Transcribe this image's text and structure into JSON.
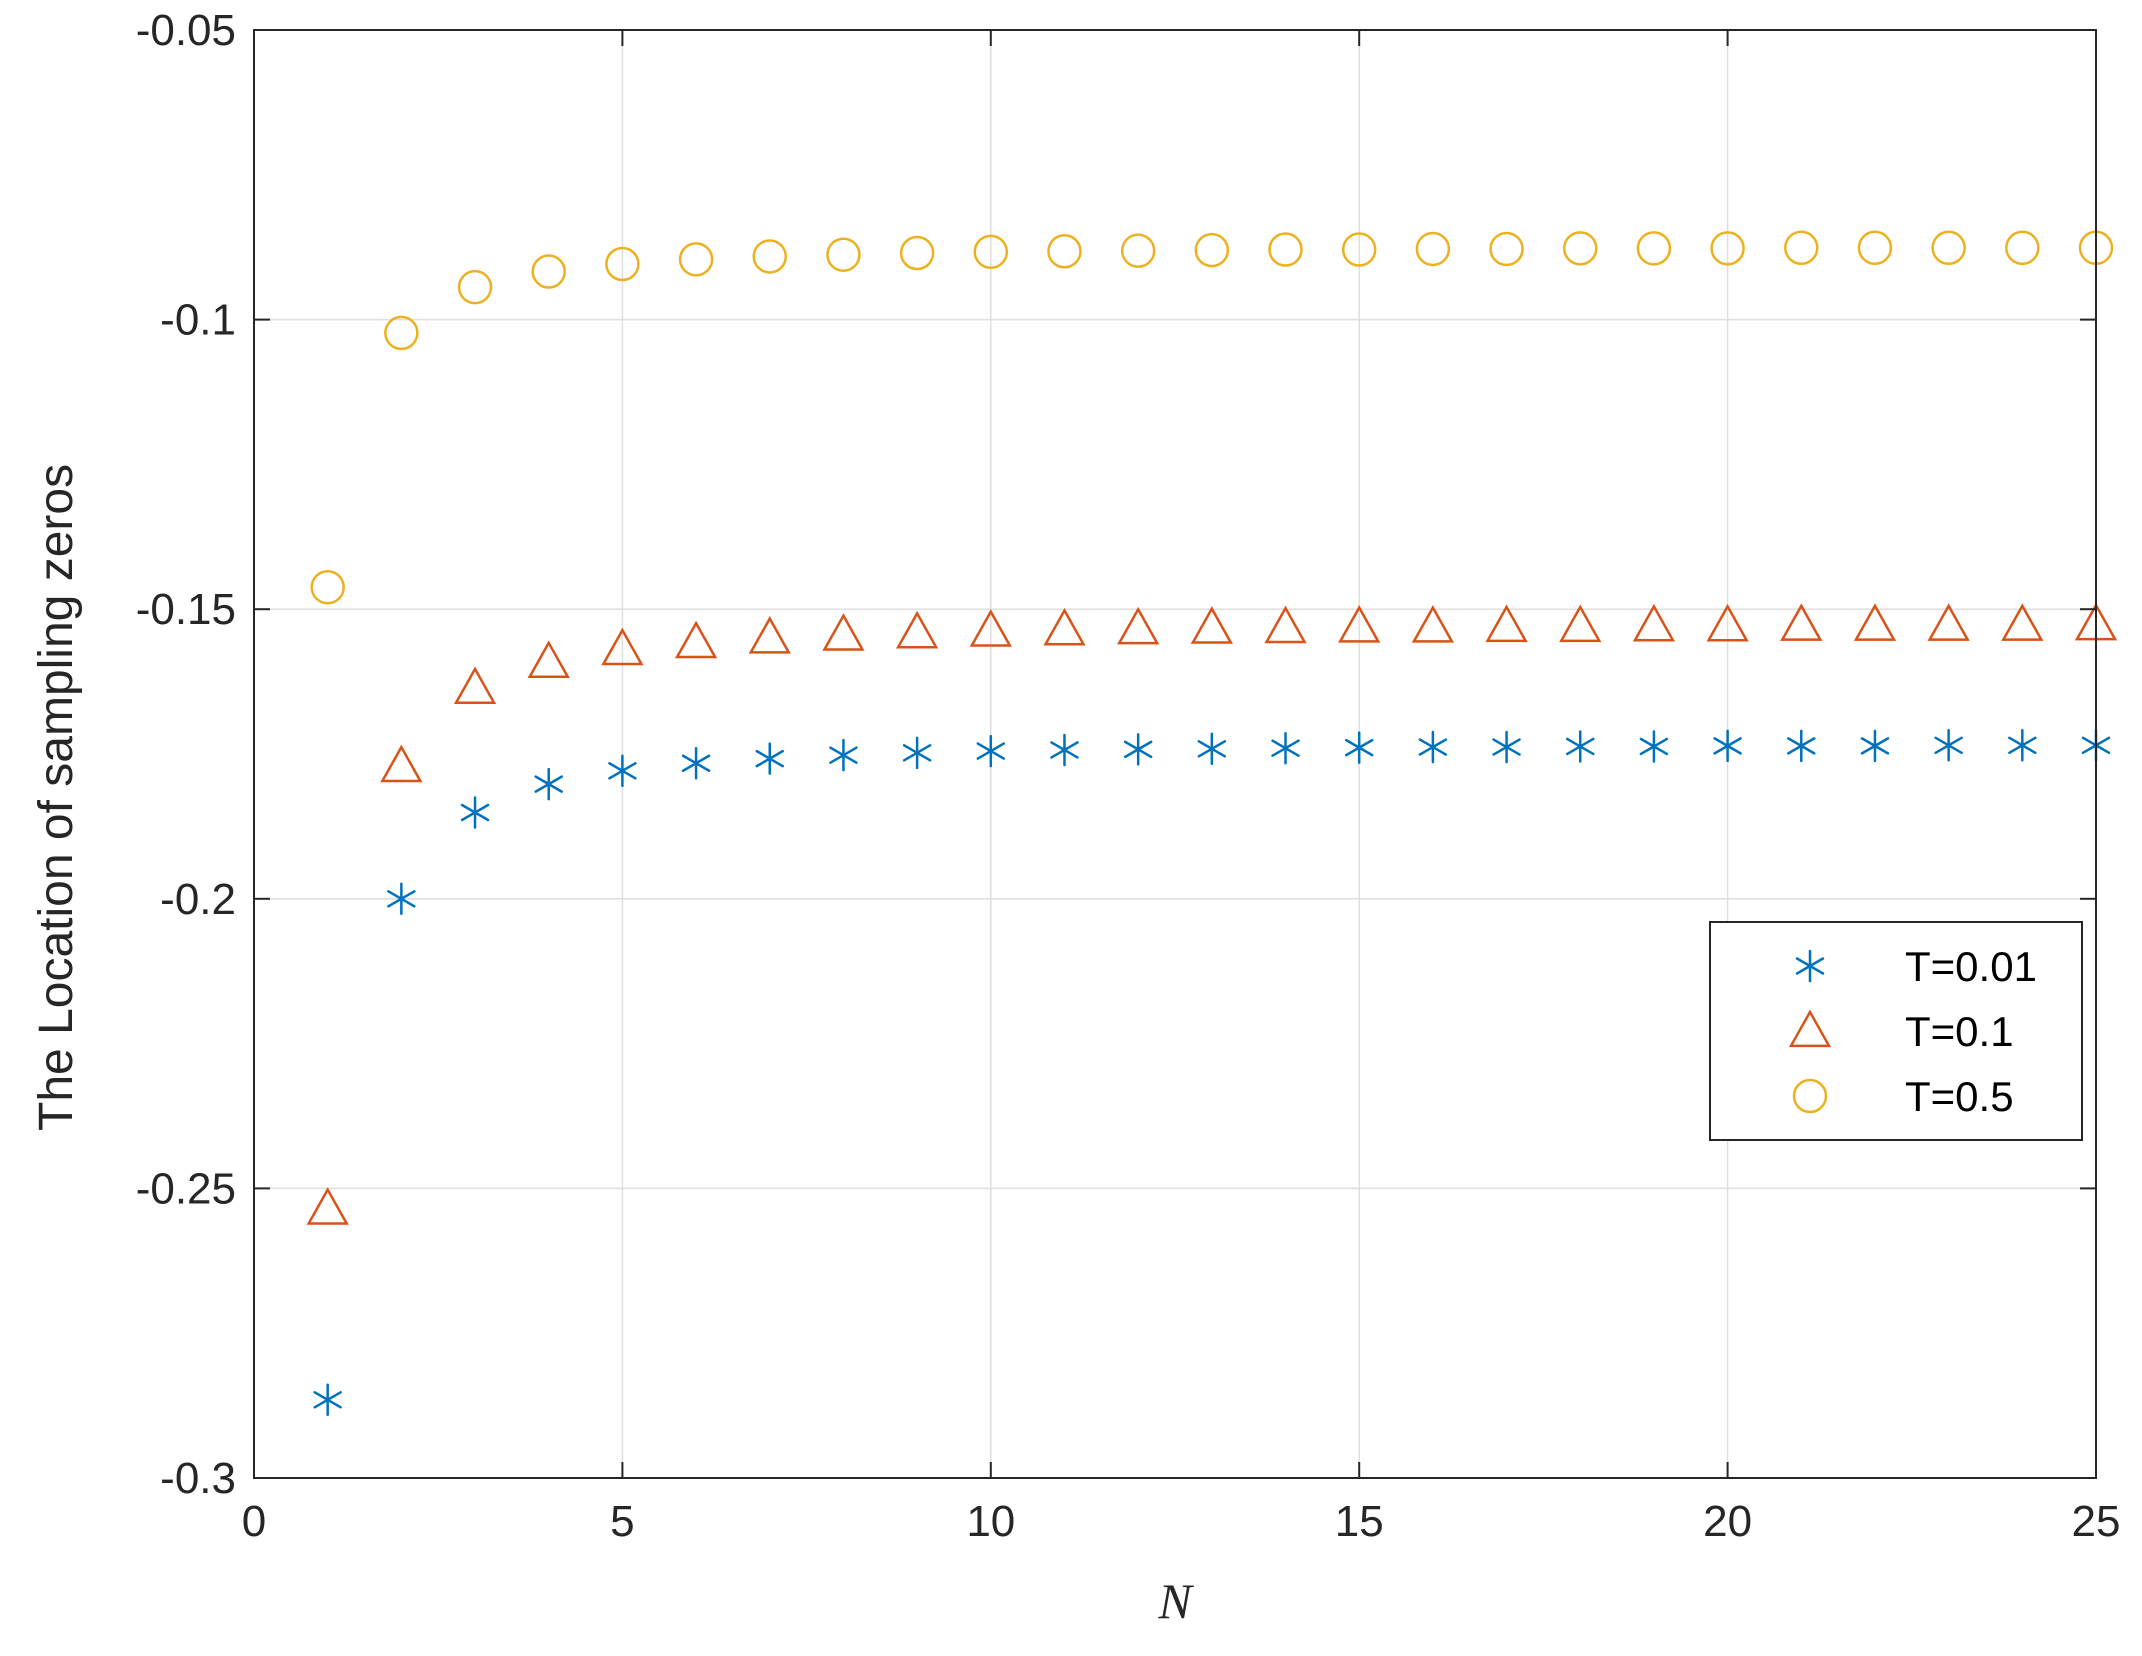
{
  "chart_data": {
    "type": "scatter",
    "xlabel": "N",
    "ylabel": "The Location of sampling zeros",
    "xlim": [
      0,
      25
    ],
    "ylim": [
      -0.3,
      -0.05
    ],
    "xticks": [
      0,
      5,
      10,
      15,
      20,
      25
    ],
    "xtick_labels": [
      "0",
      "5",
      "10",
      "15",
      "20",
      "25"
    ],
    "yticks": [
      -0.3,
      -0.25,
      -0.2,
      -0.15,
      -0.1,
      -0.05
    ],
    "ytick_labels": [
      "-0.3",
      "-0.25",
      "-0.2",
      "-0.15",
      "-0.1",
      "-0.05"
    ],
    "grid": true,
    "legend_position": "right",
    "x": [
      1,
      2,
      3,
      4,
      5,
      6,
      7,
      8,
      9,
      10,
      11,
      12,
      13,
      14,
      15,
      16,
      17,
      18,
      19,
      20,
      21,
      22,
      23,
      24,
      25
    ],
    "series": [
      {
        "name": "T=0.01",
        "marker": "asterisk",
        "color": "#0072BD",
        "values": [
          -0.2865,
          -0.2,
          -0.1851,
          -0.1802,
          -0.1779,
          -0.1766,
          -0.1758,
          -0.1752,
          -0.1748,
          -0.1745,
          -0.1743,
          -0.1742,
          -0.1741,
          -0.174,
          -0.1739,
          -0.1738,
          -0.1738,
          -0.1737,
          -0.1737,
          -0.1736,
          -0.1736,
          -0.1736,
          -0.1735,
          -0.1735,
          -0.1735
        ]
      },
      {
        "name": "T=0.1",
        "marker": "triangle",
        "color": "#D95319",
        "values": [
          -0.2535,
          -0.1771,
          -0.1636,
          -0.1591,
          -0.1569,
          -0.1557,
          -0.1549,
          -0.1544,
          -0.154,
          -0.1537,
          -0.1535,
          -0.1533,
          -0.1532,
          -0.1531,
          -0.153,
          -0.153,
          -0.1529,
          -0.1529,
          -0.1528,
          -0.1528,
          -0.1527,
          -0.1527,
          -0.1527,
          -0.1527,
          -0.1526
        ]
      },
      {
        "name": "T=0.5",
        "marker": "circle",
        "color": "#EDB120",
        "values": [
          -0.1462,
          -0.1023,
          -0.0944,
          -0.0917,
          -0.0904,
          -0.0896,
          -0.0891,
          -0.0888,
          -0.0885,
          -0.0883,
          -0.0882,
          -0.0881,
          -0.088,
          -0.0879,
          -0.0879,
          -0.0878,
          -0.0878,
          -0.0877,
          -0.0877,
          -0.0877,
          -0.0876,
          -0.0876,
          -0.0876,
          -0.0876,
          -0.0876
        ]
      }
    ]
  }
}
